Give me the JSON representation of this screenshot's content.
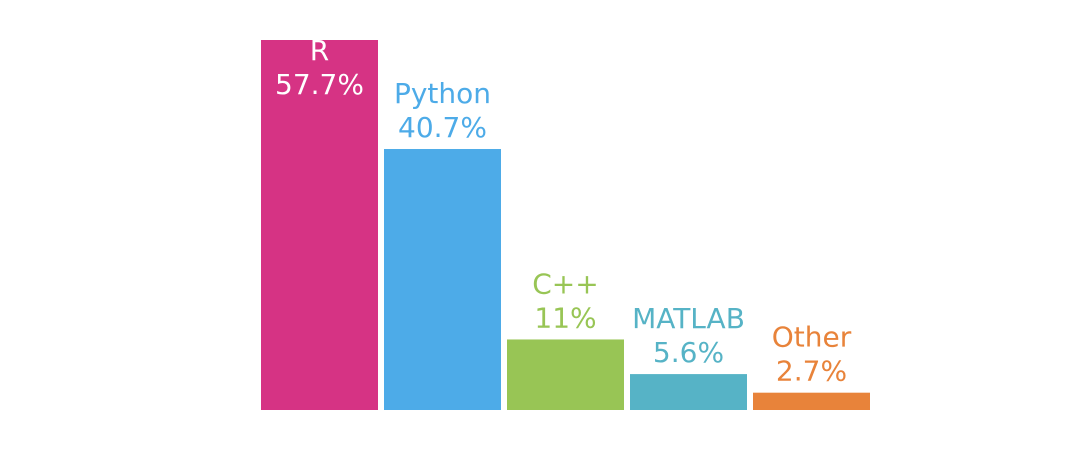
{
  "chart_data": {
    "type": "bar",
    "categories": [
      "R",
      "Python",
      "C++",
      "MATLAB",
      "Other"
    ],
    "values": [
      57.7,
      40.7,
      11,
      5.6,
      2.7
    ],
    "value_labels": [
      "57.7%",
      "40.7%",
      "11%",
      "5.6%",
      "2.7%"
    ],
    "colors": [
      "#d63384",
      "#4dabe8",
      "#98c555",
      "#56b3c6",
      "#e8833a"
    ],
    "label_colors": [
      "#ffffff",
      "#4dabe8",
      "#98c555",
      "#56b3c6",
      "#e8833a"
    ],
    "label_inside": [
      true,
      false,
      false,
      false,
      false
    ],
    "title": "",
    "xlabel": "",
    "ylabel": "",
    "ylim": [
      0,
      57.7
    ],
    "grid": false,
    "legend": false
  }
}
